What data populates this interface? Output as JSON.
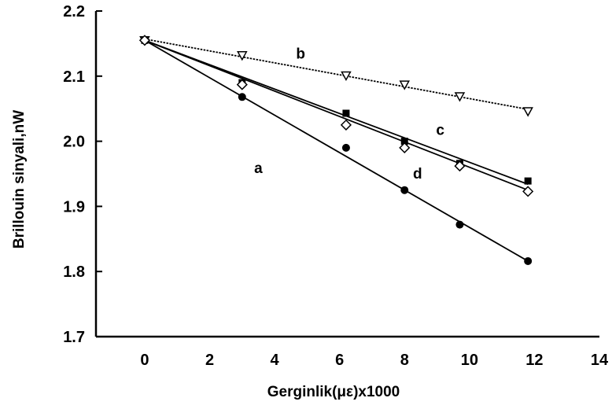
{
  "chart_data": {
    "type": "scatter",
    "title": "",
    "xlabel": "Gerginlik(με)x1000",
    "ylabel": "Brillouin sinyali,nW",
    "xlim": [
      -1.5,
      14
    ],
    "ylim": [
      1.7,
      2.2
    ],
    "x_ticks": [
      0,
      2,
      4,
      6,
      8,
      10,
      12,
      14
    ],
    "y_ticks": [
      1.7,
      1.8,
      1.9,
      2.0,
      2.1,
      2.2
    ],
    "x_tick_labels": [
      "0",
      "2",
      "4",
      "6",
      "8",
      "10",
      "12",
      "14"
    ],
    "y_tick_labels": [
      "1.7",
      "1.8",
      "1.9",
      "2.0",
      "2.1",
      "2.2"
    ],
    "grid": false,
    "legend": "none",
    "series": [
      {
        "name": "a",
        "marker": "filled-circle",
        "x": [
          0,
          3,
          6.2,
          8,
          9.7,
          11.8
        ],
        "y": [
          2.155,
          2.068,
          1.99,
          1.925,
          1.872,
          1.816
        ],
        "fit": [
          [
            0,
            2.155
          ],
          [
            11.8,
            1.816
          ]
        ]
      },
      {
        "name": "b",
        "marker": "open-triangle-down",
        "x": [
          0,
          3,
          6.2,
          8,
          9.7,
          11.8
        ],
        "y": [
          2.155,
          2.132,
          2.101,
          2.087,
          2.069,
          2.046
        ],
        "fit": [
          [
            0,
            2.157
          ],
          [
            11.8,
            2.049
          ]
        ]
      },
      {
        "name": "c",
        "marker": "filled-square",
        "x": [
          0,
          3,
          6.2,
          8,
          9.7,
          11.8
        ],
        "y": [
          2.155,
          2.09,
          2.043,
          2.0,
          1.966,
          1.939
        ],
        "fit": [
          [
            0,
            2.155
          ],
          [
            11.8,
            1.934
          ]
        ]
      },
      {
        "name": "d",
        "marker": "open-diamond",
        "x": [
          0,
          3,
          6.2,
          8,
          9.7,
          11.8
        ],
        "y": [
          2.155,
          2.087,
          2.025,
          1.99,
          1.962,
          1.923
        ],
        "fit": [
          [
            0,
            2.155
          ],
          [
            11.8,
            1.925
          ]
        ]
      }
    ],
    "annotations": [
      {
        "text": "a",
        "x": 3.5,
        "y": 1.951
      },
      {
        "text": "b",
        "x": 4.8,
        "y": 2.127
      },
      {
        "text": "c",
        "x": 9.1,
        "y": 2.01
      },
      {
        "text": "d",
        "x": 8.4,
        "y": 1.943
      }
    ]
  }
}
